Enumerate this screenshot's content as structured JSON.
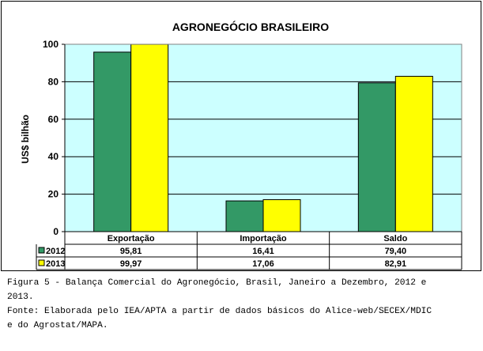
{
  "chart_data": {
    "type": "bar",
    "title": "AGRONEGÓCIO BRASILEIRO",
    "ylabel": "US$ bilhão",
    "xlabel": "",
    "ylim": [
      0,
      100
    ],
    "yticks": [
      0,
      20,
      40,
      60,
      80,
      100
    ],
    "grid": true,
    "legend": "data-table",
    "categories": [
      "Exportação",
      "Importação",
      "Saldo"
    ],
    "series": [
      {
        "name": "2012",
        "color": "#339966",
        "values": [
          95.81,
          16.41,
          79.4
        ],
        "labels": [
          "95,81",
          "16,41",
          "79,40"
        ]
      },
      {
        "name": "2013",
        "color": "#ffff00",
        "values": [
          99.97,
          17.06,
          82.91
        ],
        "labels": [
          "99,97",
          "17,06",
          "82,91"
        ]
      }
    ]
  },
  "caption": {
    "line1": "Figura 5 - Balança Comercial do Agronegócio, Brasil, Janeiro a Dezembro, 2012 e",
    "line2": "2013.",
    "line3": "Fonte: Elaborada pelo IEA/APTA a partir de dados básicos do Alice-web/SECEX/MDIC",
    "line4": "e do Agrostat/MAPA."
  }
}
